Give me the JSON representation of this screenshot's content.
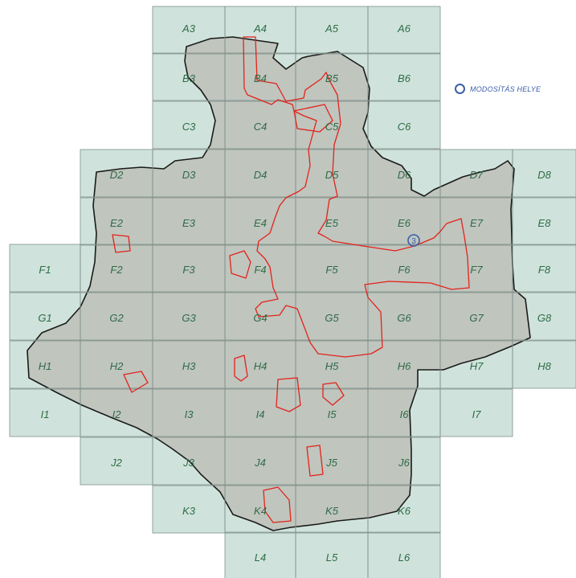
{
  "legend": {
    "label": "MODOSÍTÁS HELYE"
  },
  "marker": {
    "label": "3"
  },
  "colors": {
    "grid_fill": "#cfe3dc",
    "grid_line": "#7f8f8a",
    "city_fill": "#bdbfb9",
    "boundary": "#1a1a1a",
    "modification": "#e2231a",
    "label": "#2f6b45",
    "legend": "#3b5fa8"
  },
  "grid": {
    "rows": [
      {
        "row": "A",
        "cols": [
          "3",
          "4",
          "5",
          "6"
        ]
      },
      {
        "row": "B",
        "cols": [
          "3",
          "4",
          "5",
          "6"
        ]
      },
      {
        "row": "C",
        "cols": [
          "3",
          "4",
          "5",
          "6"
        ]
      },
      {
        "row": "D",
        "cols": [
          "2",
          "3",
          "4",
          "5",
          "6",
          "7",
          "8"
        ]
      },
      {
        "row": "E",
        "cols": [
          "2",
          "3",
          "4",
          "5",
          "6",
          "7",
          "8"
        ]
      },
      {
        "row": "F",
        "cols": [
          "1",
          "2",
          "3",
          "4",
          "5",
          "6",
          "7",
          "8"
        ]
      },
      {
        "row": "G",
        "cols": [
          "1",
          "2",
          "3",
          "4",
          "5",
          "6",
          "7",
          "8"
        ]
      },
      {
        "row": "H",
        "cols": [
          "1",
          "2",
          "3",
          "4",
          "5",
          "6",
          "7",
          "8"
        ]
      },
      {
        "row": "I",
        "cols": [
          "1",
          "2",
          "3",
          "4",
          "5",
          "6",
          "7"
        ]
      },
      {
        "row": "J",
        "cols": [
          "2",
          "3",
          "4",
          "5",
          "6"
        ]
      },
      {
        "row": "K",
        "cols": [
          "3",
          "4",
          "5",
          "6"
        ]
      },
      {
        "row": "L",
        "cols": [
          "4",
          "5",
          "6"
        ]
      }
    ]
  }
}
